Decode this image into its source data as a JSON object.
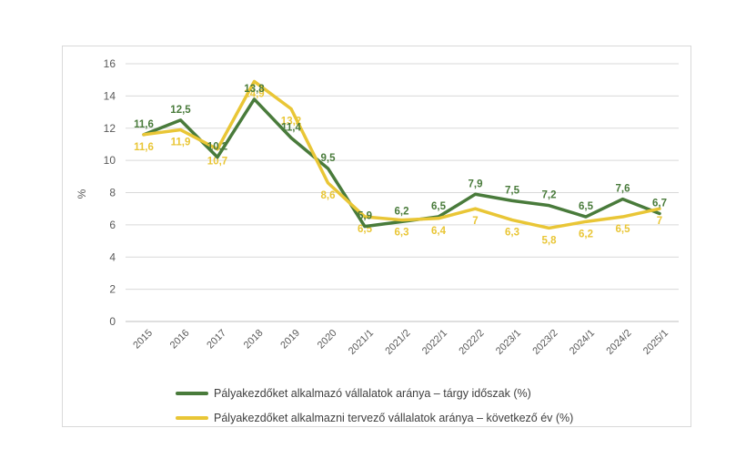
{
  "chart_data": {
    "type": "line",
    "title": "",
    "xlabel": "",
    "ylabel": "%",
    "ylim": [
      0,
      16
    ],
    "yticks": [
      0,
      2,
      4,
      6,
      8,
      10,
      12,
      14,
      16
    ],
    "grid": true,
    "legend_position": "bottom",
    "categories": [
      "2015",
      "2016",
      "2017",
      "2018",
      "2019",
      "2020",
      "2021/1",
      "2021/2",
      "2022/1",
      "2022/2",
      "2023/1",
      "2023/2",
      "2024/1",
      "2024/2",
      "2025/1"
    ],
    "series": [
      {
        "name": "Pályakezdőket alkalmazó vállalatok aránya – tárgy időszak (%)",
        "color": "#497b3b",
        "values": [
          11.6,
          12.5,
          10.2,
          13.8,
          11.4,
          9.5,
          5.9,
          6.2,
          6.5,
          7.9,
          7.5,
          7.2,
          6.5,
          7.6,
          6.7
        ],
        "labels": [
          "11,6",
          "12,5",
          "10,2",
          "13,8",
          "11,4",
          "9,5",
          "5,9",
          "6,2",
          "6,5",
          "7,9",
          "7,5",
          "7,2",
          "6,5",
          "7,6",
          "6,7"
        ]
      },
      {
        "name": "Pályakezdőket alkalmazni tervező vállalatok aránya – következő év (%)",
        "color": "#e9c636",
        "values": [
          11.6,
          11.9,
          10.7,
          14.9,
          13.2,
          8.6,
          6.5,
          6.3,
          6.4,
          7.0,
          6.3,
          5.8,
          6.2,
          6.5,
          7.0
        ],
        "labels": [
          "11,6",
          "11,9",
          "10,7",
          "14,9",
          "13,2",
          "8,6",
          "6,5",
          "6,3",
          "6,4",
          "7",
          "6,3",
          "5,8",
          "6,2",
          "6,5",
          "7"
        ]
      }
    ],
    "colors": {
      "gridline": "#d9d9d9",
      "axis_line": "#bfbfbf",
      "axis_text": "#595959"
    }
  }
}
